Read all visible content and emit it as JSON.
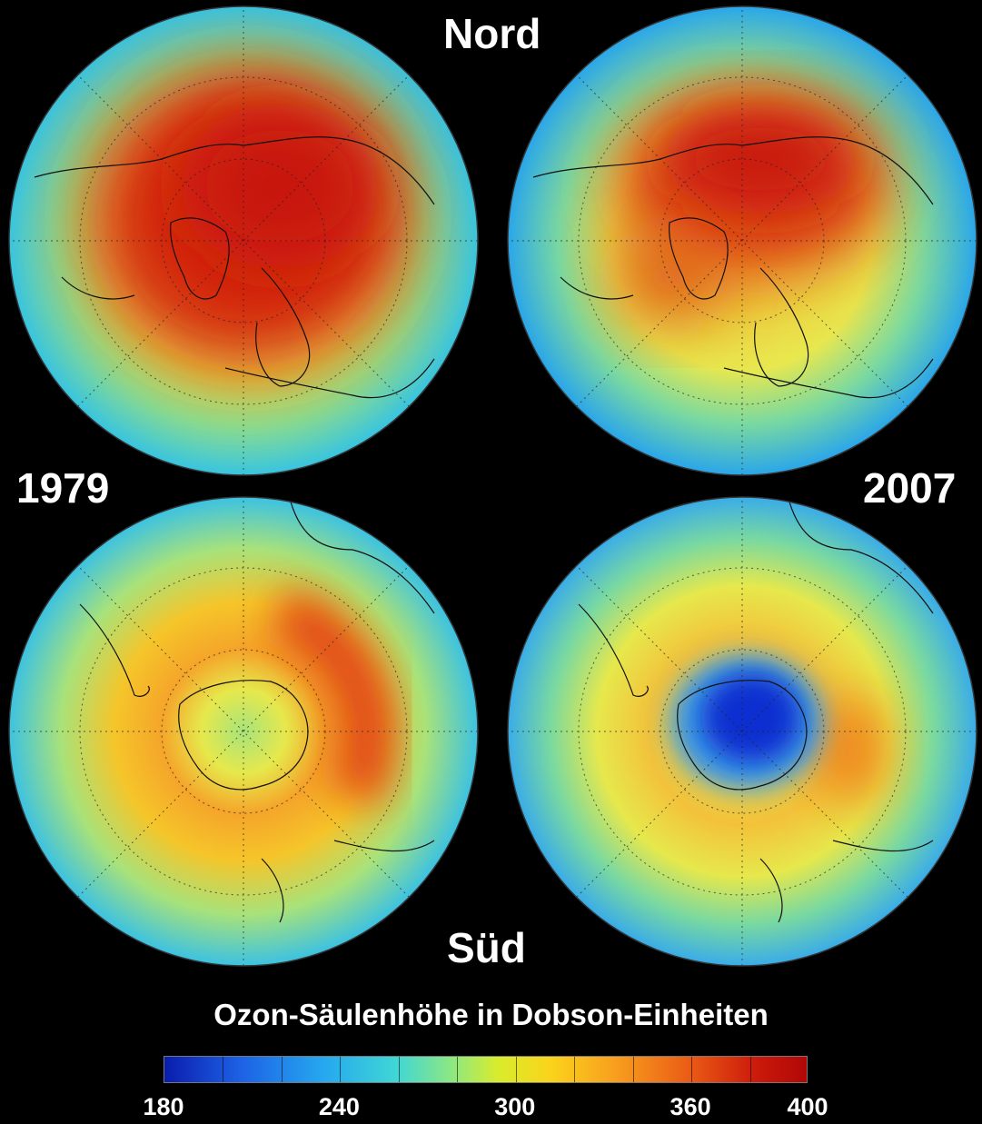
{
  "labels": {
    "north": "Nord",
    "south": "Süd",
    "year_left": "1979",
    "year_right": "2007",
    "colorbar_title": "Ozon-Säulenhöhe in Dobson-Einheiten"
  },
  "colorbar": {
    "min": 180,
    "max": 400,
    "tick_labels": [
      "180",
      "240",
      "300",
      "360",
      "400"
    ],
    "tick_values": [
      180,
      240,
      300,
      360,
      400
    ],
    "colors": [
      "#0a1dad",
      "#1d62e6",
      "#26a9ef",
      "#3fd6d6",
      "#8fe87f",
      "#d9ec2c",
      "#fad41b",
      "#f8a01e",
      "#ea5a15",
      "#cc1a0b",
      "#b10707"
    ]
  },
  "panels": [
    {
      "id": "north-1979",
      "hemisphere": "Nord",
      "year": "1979"
    },
    {
      "id": "north-2007",
      "hemisphere": "Nord",
      "year": "2007"
    },
    {
      "id": "south-1979",
      "hemisphere": "Süd",
      "year": "1979"
    },
    {
      "id": "south-2007",
      "hemisphere": "Süd",
      "year": "2007"
    }
  ]
}
